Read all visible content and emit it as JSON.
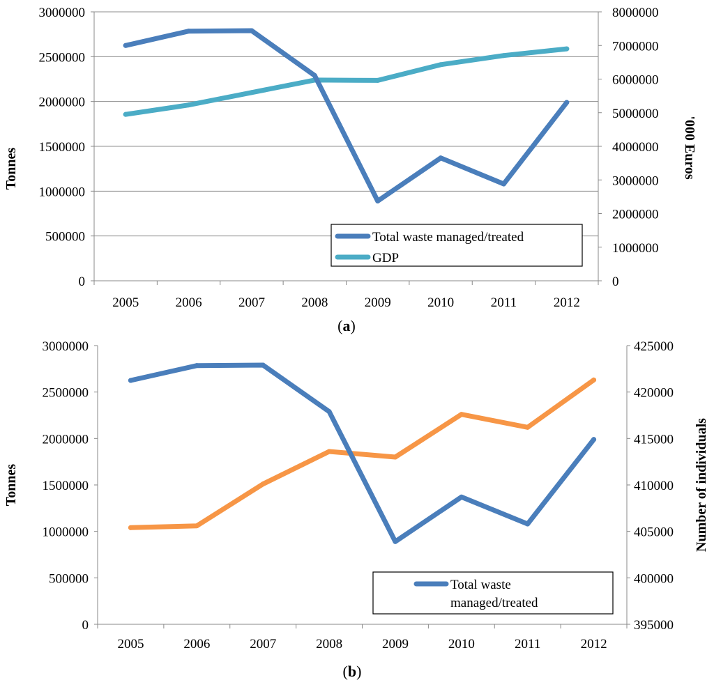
{
  "chart_data": [
    {
      "type": "line",
      "panel_label": "a",
      "categories": [
        "2005",
        "2006",
        "2007",
        "2008",
        "2009",
        "2010",
        "2011",
        "2012"
      ],
      "ylabel": "Tonnes",
      "y2label": "'000 Euros",
      "ylim": [
        0,
        3000000
      ],
      "y2lim": [
        0,
        8000000
      ],
      "y_ticks": [
        "0",
        "500000",
        "1000000",
        "1500000",
        "2000000",
        "2500000",
        "3000000"
      ],
      "y2_ticks": [
        "0",
        "1000000",
        "2000000",
        "3000000",
        "4000000",
        "5000000",
        "6000000",
        "7000000",
        "8000000"
      ],
      "grid": true,
      "legend_position": "bottom-right",
      "series": [
        {
          "name": "Total waste managed/treated",
          "axis": "left",
          "color": "#4a7ebb",
          "values": [
            2625000,
            2785000,
            2790000,
            2290000,
            890000,
            1370000,
            1080000,
            1990000
          ]
        },
        {
          "name": "GDP",
          "axis": "right",
          "color": "#4bacc6",
          "values": [
            4950000,
            5230000,
            5600000,
            5970000,
            5960000,
            6430000,
            6700000,
            6900000
          ]
        }
      ]
    },
    {
      "type": "line",
      "panel_label": "b",
      "categories": [
        "2005",
        "2006",
        "2007",
        "2008",
        "2009",
        "2010",
        "2011",
        "2012"
      ],
      "ylabel": "Tonnes",
      "y2label": "Number of individuals",
      "ylim": [
        0,
        3000000
      ],
      "y2lim": [
        395000,
        425000
      ],
      "y_ticks": [
        "0",
        "500000",
        "1000000",
        "1500000",
        "2000000",
        "2500000",
        "3000000"
      ],
      "y2_ticks": [
        "395000",
        "400000",
        "405000",
        "410000",
        "415000",
        "420000",
        "425000"
      ],
      "grid": false,
      "legend_position": "bottom-right",
      "series": [
        {
          "name": "Total waste managed/treated",
          "axis": "left",
          "color": "#4a7ebb",
          "values": [
            2625000,
            2785000,
            2790000,
            2290000,
            890000,
            1370000,
            1080000,
            1990000
          ]
        },
        {
          "name": "",
          "axis": "right",
          "color": "#f79646",
          "values": [
            405400,
            405600,
            410100,
            413600,
            413000,
            417600,
            416200,
            421300
          ]
        }
      ],
      "legend_lines": [
        "Total waste",
        "managed/treated"
      ]
    }
  ]
}
